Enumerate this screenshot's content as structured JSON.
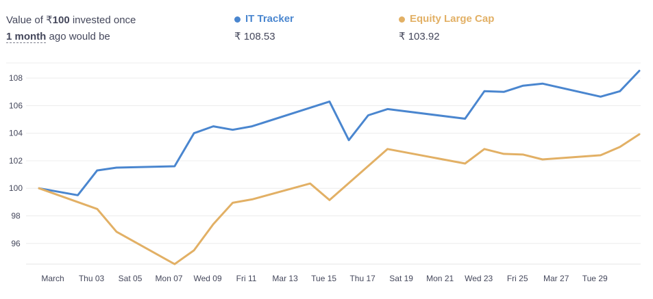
{
  "header": {
    "prefix": "Value of ₹",
    "amount": "100",
    "suffix": " invested once",
    "period": "1 month",
    "tail": " ago would be"
  },
  "legend": [
    {
      "name": "IT Tracker",
      "value": "₹ 108.53",
      "color": "#4a86cf"
    },
    {
      "name": "Equity Large Cap",
      "value": "₹ 103.92",
      "color": "#e2b065"
    }
  ],
  "chart_data": {
    "type": "line",
    "x_labels": [
      "March",
      "Thu 03",
      "Sat 05",
      "Mon 07",
      "Wed 09",
      "Fri 11",
      "Mar 13",
      "Tue 15",
      "Thu 17",
      "Sat 19",
      "Mon 21",
      "Wed 23",
      "Fri 25",
      "Mar 27",
      "Tue 29"
    ],
    "ylim": [
      94.5,
      109
    ],
    "yticks": [
      96,
      98,
      100,
      102,
      104,
      106,
      108
    ],
    "grid": true,
    "series": [
      {
        "name": "IT Tracker",
        "color": "#4a86cf",
        "points": [
          [
            0,
            100
          ],
          [
            2,
            99.5
          ],
          [
            3,
            101.3
          ],
          [
            4,
            101.5
          ],
          [
            7,
            101.6
          ],
          [
            8,
            104
          ],
          [
            9,
            104.5
          ],
          [
            10,
            104.25
          ],
          [
            11,
            104.5
          ],
          [
            15,
            106.3
          ],
          [
            16,
            103.5
          ],
          [
            17,
            105.3
          ],
          [
            18,
            105.75
          ],
          [
            22,
            105.05
          ],
          [
            23,
            107.05
          ],
          [
            24,
            107
          ],
          [
            25,
            107.45
          ],
          [
            26,
            107.6
          ],
          [
            29,
            106.65
          ],
          [
            30,
            107.05
          ],
          [
            31,
            108.53
          ]
        ]
      },
      {
        "name": "Equity Large Cap",
        "color": "#e2b065",
        "points": [
          [
            0,
            100
          ],
          [
            3,
            98.5
          ],
          [
            4,
            96.85
          ],
          [
            7,
            94.5
          ],
          [
            8,
            95.5
          ],
          [
            9,
            97.4
          ],
          [
            10,
            98.95
          ],
          [
            11,
            99.2
          ],
          [
            14,
            100.35
          ],
          [
            15,
            99.15
          ],
          [
            18,
            102.85
          ],
          [
            22,
            101.8
          ],
          [
            23,
            102.85
          ],
          [
            24,
            102.5
          ],
          [
            25,
            102.45
          ],
          [
            26,
            102.1
          ],
          [
            29,
            102.4
          ],
          [
            30,
            103
          ],
          [
            31,
            103.92
          ]
        ]
      }
    ]
  }
}
